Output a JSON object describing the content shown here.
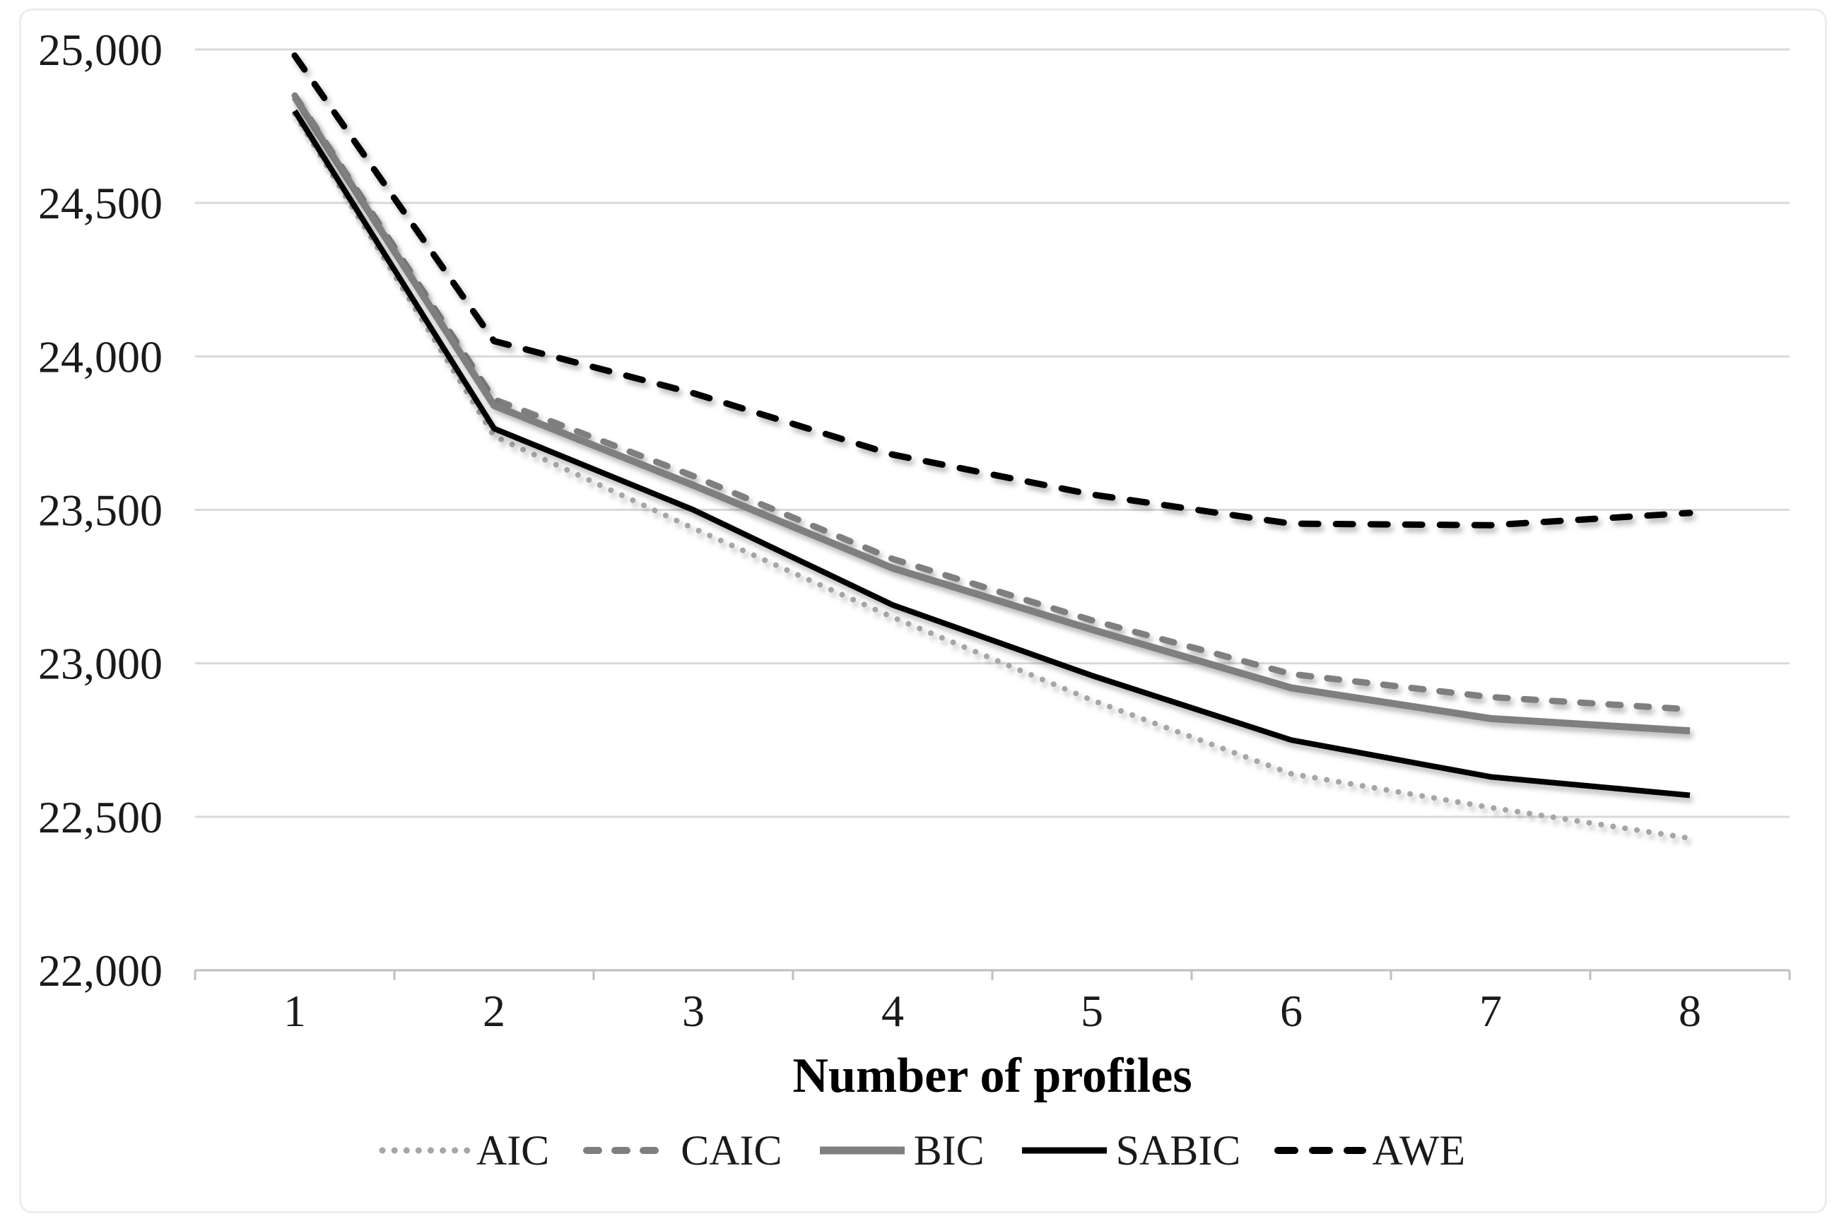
{
  "chart_data": {
    "type": "line",
    "title": "",
    "xlabel": "Number of profiles",
    "ylabel": "",
    "categories": [
      "1",
      "2",
      "3",
      "4",
      "5",
      "6",
      "7",
      "8"
    ],
    "ylim": [
      22000,
      25000
    ],
    "yticks": [
      25000,
      24500,
      24000,
      23500,
      23000,
      22500,
      22000
    ],
    "ytick_labels": [
      "25,000",
      "24,500",
      "24,000",
      "23,500",
      "23,000",
      "22,500",
      "22,000"
    ],
    "grid": true,
    "legend_position": "bottom",
    "series": [
      {
        "name": "AIC",
        "line_style": "dotted",
        "color": "#a6a6a6",
        "stroke_width": 8,
        "dasharray": "0.1 17",
        "values": [
          24790,
          23740,
          23440,
          23150,
          22880,
          22640,
          22530,
          22430
        ]
      },
      {
        "name": "CAIC",
        "line_style": "dashed",
        "color": "#7f7f7f",
        "stroke_width": 9,
        "dasharray": "17 23",
        "values": [
          24850,
          23860,
          23610,
          23340,
          23140,
          22965,
          22890,
          22850
        ]
      },
      {
        "name": "BIC",
        "line_style": "solid",
        "color": "#7f7f7f",
        "stroke_width": 10,
        "dasharray": "",
        "values": [
          24845,
          23840,
          23580,
          23310,
          23110,
          22920,
          22820,
          22780
        ]
      },
      {
        "name": "SABIC",
        "line_style": "solid",
        "color": "#000000",
        "stroke_width": 8,
        "dasharray": "",
        "values": [
          24800,
          23765,
          23500,
          23190,
          22960,
          22750,
          22630,
          22570
        ]
      },
      {
        "name": "AWE",
        "line_style": "dashed",
        "color": "#000000",
        "stroke_width": 9,
        "dasharray": "24 25",
        "values": [
          24980,
          24050,
          23880,
          23680,
          23550,
          23455,
          23450,
          23490
        ]
      }
    ]
  }
}
